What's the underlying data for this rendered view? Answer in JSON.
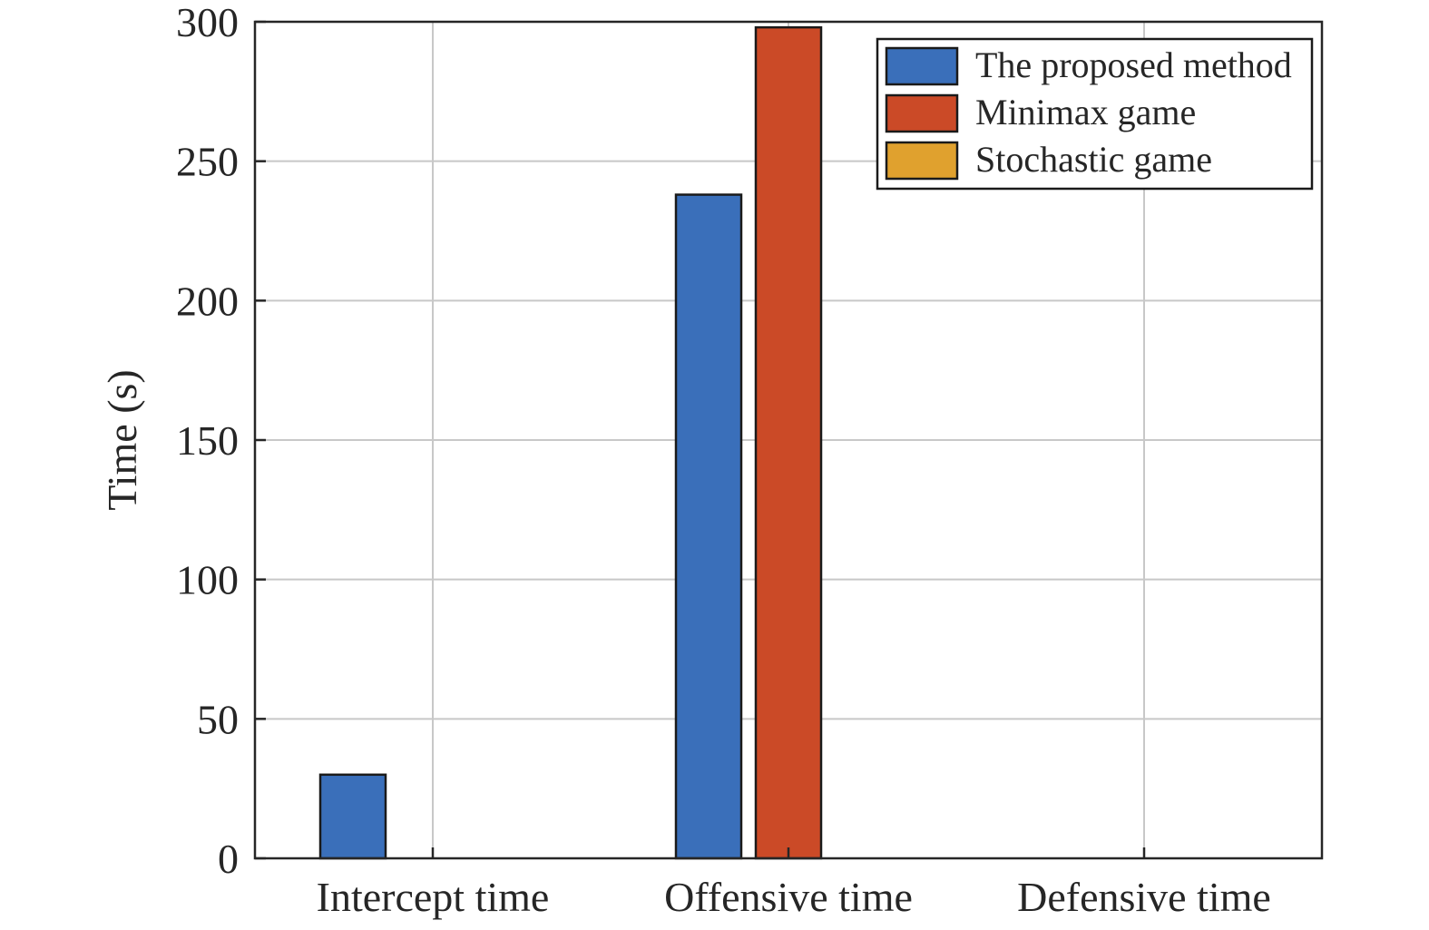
{
  "chart_data": {
    "type": "bar",
    "categories": [
      "Intercept time",
      "Offensive time",
      "Defensive time"
    ],
    "series": [
      {
        "name": "The proposed method",
        "values": [
          30,
          238,
          0
        ],
        "color": "#3a6fba"
      },
      {
        "name": "Minimax game",
        "values": [
          0,
          298,
          0
        ],
        "color": "#cb4a27"
      },
      {
        "name": "Stochastic game",
        "values": [
          0,
          0,
          0
        ],
        "color": "#e0a12e"
      }
    ],
    "title": "",
    "xlabel": "",
    "ylabel": "Time (s)",
    "ylim": [
      0,
      300
    ],
    "yticks": [
      "0",
      "50",
      "100",
      "150",
      "200",
      "250",
      "300"
    ],
    "grid": true,
    "legend_position": "top-right"
  }
}
